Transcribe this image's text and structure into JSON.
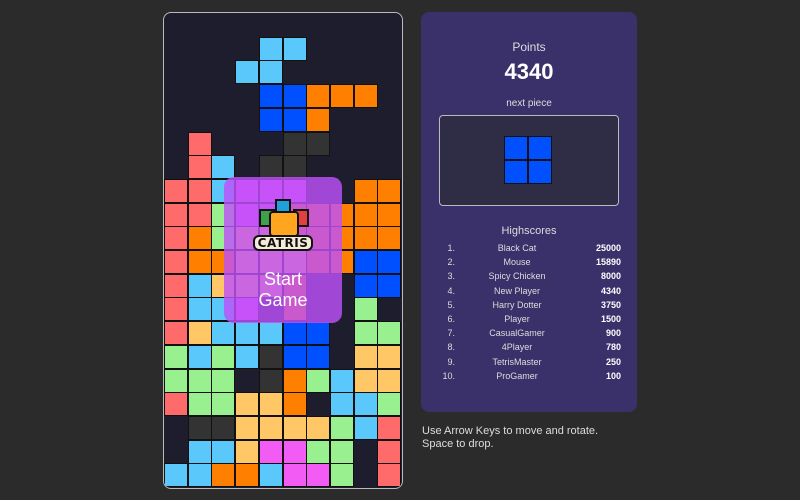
{
  "game": {
    "logo_text": "CATRIS",
    "start_button": [
      "Start",
      "Game"
    ],
    "board_rows": [
      "..........",
      "....LL....",
      "...LL.....",
      "....BBOOO.",
      "....BBO...",
      ".R...DD...",
      ".RL.DD....",
      "RRLMMM..OO",
      "RRGMMOOOOO",
      "ROGPPOOOOO",
      "ROOPPPOOBB",
      "RLPPPO..BB",
      "RLLM.O..G.",
      "RPLLLBB.GG",
      "GLGLDBB.PP",
      "GGG.DOGLPP",
      "RGGPPO.LLG",
      ".DDPPPPGLR",
      ".LLPMMGG.R",
      "LLOOLMMG.R"
    ],
    "colors": {
      "R": "#ff6b6b",
      "O": "#ff7f00",
      "B": "#0050ff",
      "L": "#5ac8fa",
      "G": "#98f08f",
      "P": "#ffc766",
      "M": "#f25cf5",
      "D": "#333333"
    }
  },
  "panel": {
    "points_label": "Points",
    "points": "4340",
    "next_piece_label": "next piece",
    "next_piece": {
      "shape": "O",
      "color": "#0050ff"
    },
    "highscores_title": "Highscores",
    "highscores": [
      {
        "rank": "1.",
        "name": "Black Cat",
        "score": "25000"
      },
      {
        "rank": "2.",
        "name": "Mouse",
        "score": "15890"
      },
      {
        "rank": "3.",
        "name": "Spicy Chicken",
        "score": "8000"
      },
      {
        "rank": "4.",
        "name": "New Player",
        "score": "4340"
      },
      {
        "rank": "5.",
        "name": "Harry Dotter",
        "score": "3750"
      },
      {
        "rank": "6.",
        "name": "Player",
        "score": "1500"
      },
      {
        "rank": "7.",
        "name": "CasualGamer",
        "score": "900"
      },
      {
        "rank": "8.",
        "name": "4Player",
        "score": "780"
      },
      {
        "rank": "9.",
        "name": "TetrisMaster",
        "score": "250"
      },
      {
        "rank": "10.",
        "name": "ProGamer",
        "score": "100"
      }
    ]
  },
  "help": [
    "Use Arrow Keys to move and rotate.",
    "Space to drop."
  ]
}
